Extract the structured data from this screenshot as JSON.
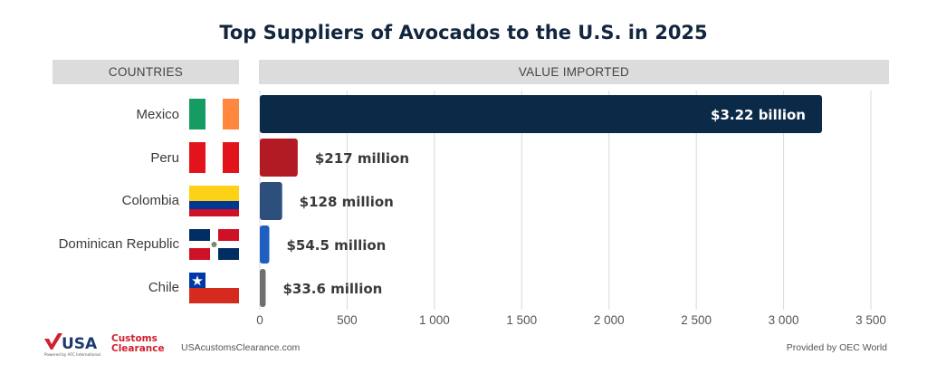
{
  "title": "Top Suppliers of Avocados to the U.S. in 2025",
  "headers": {
    "countries": "COUNTRIES",
    "value": "VALUE IMPORTED"
  },
  "colors": {
    "title": "#12263f",
    "header_bg": "#dcdcdc",
    "mexico": "#0b2a48",
    "peru": "#b31b24",
    "colombia": "#2d4f7c",
    "dominican_republic": "#1f5fbf",
    "chile": "#6f6f6f",
    "grid": "#d9d9d9"
  },
  "chart_data": {
    "type": "bar",
    "orientation": "horizontal",
    "title": "Top Suppliers of Avocados to the U.S. in 2025",
    "categories": [
      "Mexico",
      "Peru",
      "Colombia",
      "Dominican Republic",
      "Chile"
    ],
    "values": [
      3220,
      217,
      128,
      54.5,
      33.6
    ],
    "value_labels": [
      "$3.22 billion",
      "$217 million",
      "$128 million",
      "$54.5 million",
      "$33.6 million"
    ],
    "xlim": [
      0,
      3500
    ],
    "xticks": [
      0,
      500,
      1000,
      1500,
      2000,
      2500,
      3000,
      3500
    ],
    "xtick_labels": [
      "0",
      "500",
      "1 000",
      "1 500",
      "2 000",
      "2 500",
      "3 000",
      "3 500"
    ],
    "grid": true
  },
  "flags": [
    {
      "country": "Mexico",
      "icon": "mexico-flag-icon"
    },
    {
      "country": "Peru",
      "icon": "peru-flag-icon"
    },
    {
      "country": "Colombia",
      "icon": "colombia-flag-icon"
    },
    {
      "country": "Dominican Republic",
      "icon": "dominican-republic-flag-icon"
    },
    {
      "country": "Chile",
      "icon": "chile-flag-icon"
    }
  ],
  "footer": {
    "logo_main": "USA",
    "logo_line1": "Customs",
    "logo_line2": "Clearance",
    "logo_tagline": "Powered by AFC International",
    "site": "USAcustomsClearance.com",
    "source": "Provided by OEC World"
  }
}
